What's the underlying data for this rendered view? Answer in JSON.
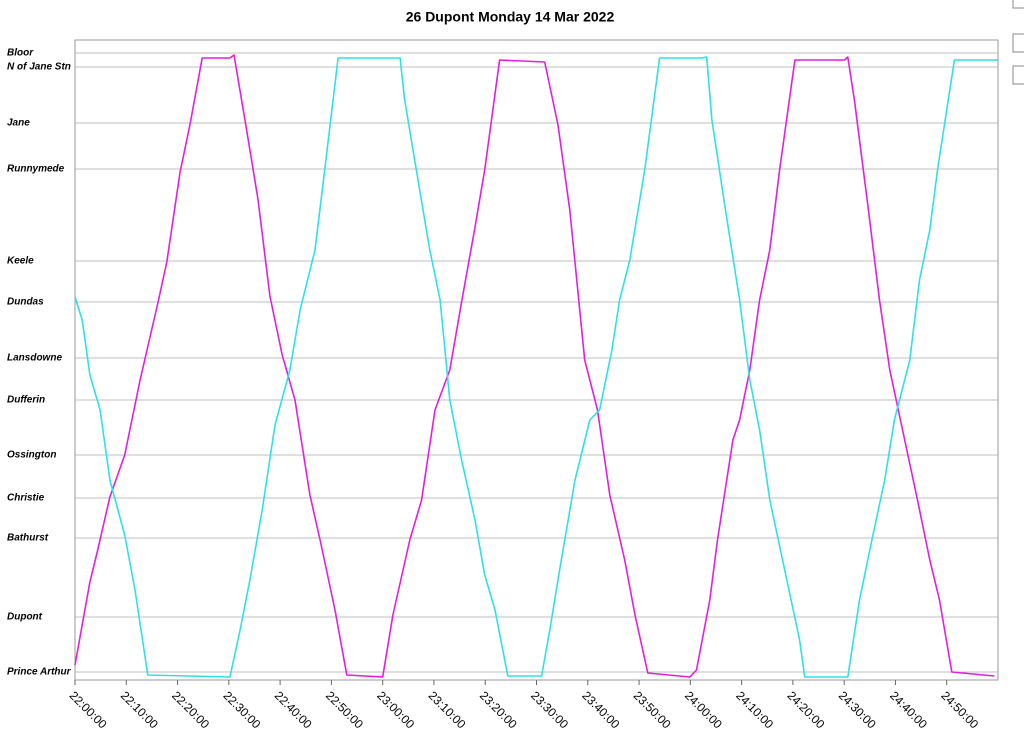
{
  "chart_data": {
    "type": "line",
    "title": "26 Dupont Monday 14 Mar 2022",
    "xlim": [
      0,
      180
    ],
    "xticks": [
      {
        "value": 0,
        "label": "22:00:00"
      },
      {
        "value": 10,
        "label": "22:10:00"
      },
      {
        "value": 20,
        "label": "22:20:00"
      },
      {
        "value": 30,
        "label": "22:30:00"
      },
      {
        "value": 40,
        "label": "22:40:00"
      },
      {
        "value": 50,
        "label": "22:50:00"
      },
      {
        "value": 60,
        "label": "23:00:00"
      },
      {
        "value": 70,
        "label": "23:10:00"
      },
      {
        "value": 80,
        "label": "23:20:00"
      },
      {
        "value": 90,
        "label": "23:30:00"
      },
      {
        "value": 100,
        "label": "23:40:00"
      },
      {
        "value": 110,
        "label": "23:50:00"
      },
      {
        "value": 120,
        "label": "24:00:00"
      },
      {
        "value": 130,
        "label": "24:10:00"
      },
      {
        "value": 140,
        "label": "24:20:00"
      },
      {
        "value": 150,
        "label": "24:30:00"
      },
      {
        "value": 160,
        "label": "24:40:00"
      },
      {
        "value": 170,
        "label": "24:50:00"
      }
    ],
    "ylim": [
      -80,
      6320
    ],
    "yticks": [
      {
        "value": 6190,
        "label": "Bloor"
      },
      {
        "value": 6050,
        "label": "N of Jane Stn"
      },
      {
        "value": 5490,
        "label": "Jane"
      },
      {
        "value": 5030,
        "label": "Runnymede"
      },
      {
        "value": 4110,
        "label": "Keele"
      },
      {
        "value": 3700,
        "label": "Dundas"
      },
      {
        "value": 3140,
        "label": "Lansdowne"
      },
      {
        "value": 2720,
        "label": "Dufferin"
      },
      {
        "value": 2170,
        "label": "Ossington"
      },
      {
        "value": 1740,
        "label": "Christie"
      },
      {
        "value": 1340,
        "label": "Bathurst"
      },
      {
        "value": 550,
        "label": "Dupont"
      },
      {
        "value": 0,
        "label": "Prince Arthur"
      }
    ],
    "grid": true,
    "series": [
      {
        "color": "#e020e0",
        "x": [
          0,
          2.9,
          4.3,
          6.8,
          9.7,
          12.7,
          16.2,
          17.9,
          20.5,
          22.4,
          24.8,
          30.2,
          31.0,
          33.3,
          35.7,
          38.0,
          40.4,
          42.9,
          45.8,
          47.8,
          50.7,
          53.0,
          60.0,
          62.0,
          65.3,
          67.6,
          70.2,
          73.1,
          75.4,
          77.9,
          79.9,
          82.8,
          91.6,
          94.2,
          96.5,
          99.4,
          101.9,
          104.3,
          107.2,
          109.2,
          111.7,
          119.9,
          121.2,
          123.8,
          125.3,
          128.3,
          129.6,
          131.6,
          133.5,
          135.5,
          137.4,
          140.4,
          150.1,
          150.7,
          152.0,
          154.6,
          156.9,
          158.9,
          161.8,
          164.3,
          166.7,
          168.6,
          171.0,
          179.3
        ],
        "values": [
          70,
          900,
          1190,
          1750,
          2170,
          2920,
          3700,
          4100,
          5000,
          5470,
          6140,
          6140,
          6170,
          5470,
          4720,
          3760,
          3170,
          2720,
          1770,
          1320,
          620,
          -30,
          -50,
          570,
          1320,
          1720,
          2620,
          3020,
          3700,
          4420,
          5020,
          6120,
          6100,
          5470,
          4620,
          3120,
          2620,
          1770,
          1120,
          570,
          -10,
          -50,
          20,
          720,
          1320,
          2320,
          2520,
          3020,
          3720,
          4220,
          5020,
          6120,
          6120,
          6150,
          5720,
          4670,
          3720,
          3020,
          2320,
          1720,
          1120,
          720,
          0,
          -40
        ]
      },
      {
        "color": "#30e0e8",
        "x": [
          0,
          1.4,
          2.9,
          4.9,
          6.8,
          9.7,
          11.7,
          14.2,
          30.2,
          32.2,
          34.1,
          36.5,
          39.0,
          41.9,
          43.9,
          46.8,
          48.7,
          51.3,
          63.4,
          64.3,
          66.9,
          69.2,
          71.2,
          73.1,
          75.4,
          78.0,
          79.9,
          81.9,
          84.4,
          91.0,
          92.6,
          94.5,
          97.5,
          100.4,
          102.3,
          104.7,
          106.2,
          108.2,
          111.1,
          114.0,
          122.2,
          123.2,
          124.2,
          126.7,
          129.6,
          131.6,
          133.5,
          135.5,
          138.4,
          141.3,
          142.3,
          150.7,
          153.0,
          155.4,
          157.9,
          159.8,
          162.8,
          164.7,
          166.7,
          168.2,
          171.5,
          179.9
        ],
        "values": [
          3750,
          3520,
          2970,
          2620,
          1920,
          1370,
          820,
          -30,
          -50,
          420,
          920,
          1620,
          2470,
          3020,
          3620,
          4220,
          5020,
          6140,
          6140,
          5720,
          4920,
          4220,
          3720,
          2720,
          2120,
          1520,
          970,
          620,
          -40,
          -40,
          420,
          1020,
          1920,
          2520,
          2620,
          3220,
          3720,
          4120,
          5020,
          6140,
          6140,
          6150,
          5520,
          4670,
          3720,
          2920,
          2420,
          1720,
          1020,
          320,
          -50,
          -50,
          720,
          1320,
          1920,
          2520,
          3120,
          3920,
          4420,
          5020,
          6120,
          6120
        ]
      }
    ]
  }
}
